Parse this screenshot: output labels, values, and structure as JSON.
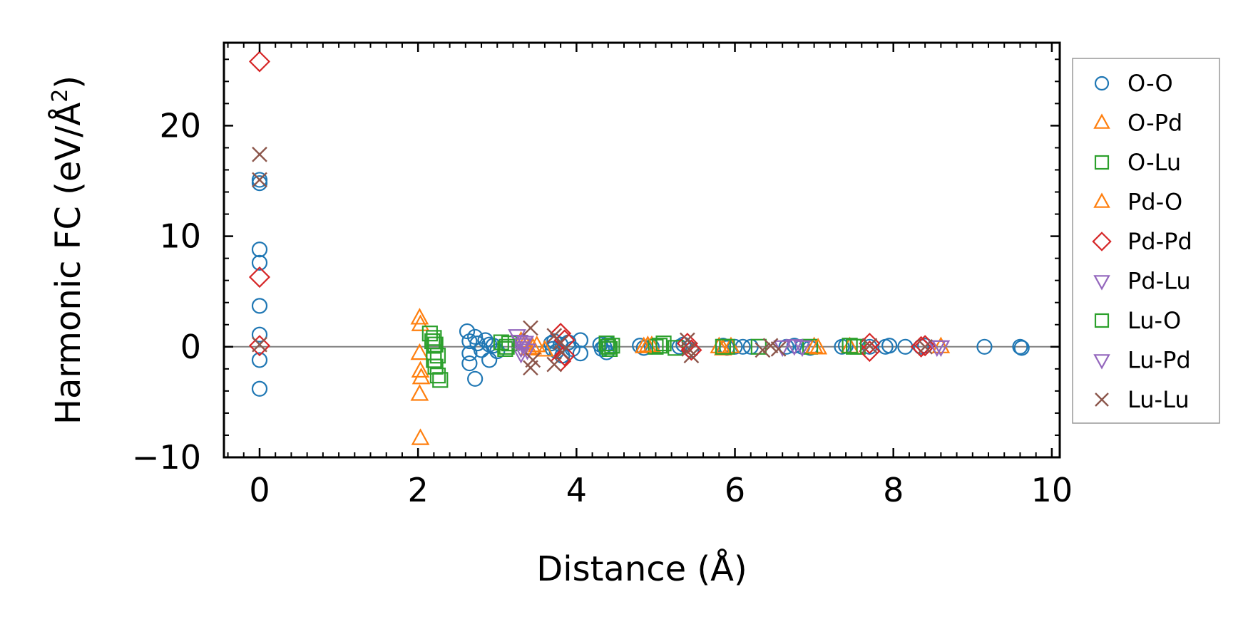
{
  "chart_data": {
    "type": "scatter",
    "xlabel": "Distance (Å)",
    "ylabel_main": "Harmonic FC (eV/Å",
    "ylabel_sup": "2",
    "ylabel_close": ")",
    "xlim": [
      -0.45,
      10.1
    ],
    "ylim": [
      -10,
      27.5
    ],
    "xticks": [
      0,
      2,
      4,
      6,
      8,
      10
    ],
    "xtick_labels": [
      "0",
      "2",
      "4",
      "6",
      "8",
      "10"
    ],
    "yticks": [
      -10,
      0,
      10,
      20
    ],
    "ytick_labels": [
      "−10",
      "0",
      "10",
      "20"
    ],
    "zero_line": true,
    "grid": false,
    "legend_position": "outside-right",
    "series": [
      {
        "name": "O-O",
        "marker": "circle",
        "color": "#1f77b4",
        "points": [
          [
            0,
            15.1
          ],
          [
            0,
            14.8
          ],
          [
            0,
            8.8
          ],
          [
            0,
            7.6
          ],
          [
            0,
            3.7
          ],
          [
            0,
            1.1
          ],
          [
            0,
            -1.2
          ],
          [
            0,
            -3.8
          ],
          [
            2.62,
            1.4
          ],
          [
            2.65,
            0.5
          ],
          [
            2.65,
            -0.6
          ],
          [
            2.65,
            -1.5
          ],
          [
            2.72,
            -2.9
          ],
          [
            2.72,
            0.9
          ],
          [
            2.75,
            0.3
          ],
          [
            2.8,
            -0.3
          ],
          [
            2.85,
            0.6
          ],
          [
            2.9,
            0.2
          ],
          [
            2.9,
            -1.2
          ],
          [
            2.95,
            0.1
          ],
          [
            3.0,
            -0.4
          ],
          [
            3.68,
            0.3
          ],
          [
            3.7,
            -0.2
          ],
          [
            3.72,
            0.5
          ],
          [
            3.75,
            -0.4
          ],
          [
            3.8,
            0.2
          ],
          [
            3.82,
            -0.8
          ],
          [
            3.9,
            0.4
          ],
          [
            3.95,
            -0.2
          ],
          [
            4.05,
            0.6
          ],
          [
            4.05,
            -0.6
          ],
          [
            4.3,
            0.2
          ],
          [
            4.32,
            -0.2
          ],
          [
            4.35,
            0.0
          ],
          [
            4.38,
            -0.5
          ],
          [
            4.4,
            0.3
          ],
          [
            4.8,
            0.1
          ],
          [
            4.85,
            -0.1
          ],
          [
            4.95,
            0.0
          ],
          [
            5.3,
            0.0
          ],
          [
            5.35,
            0.2
          ],
          [
            5.45,
            -0.3
          ],
          [
            5.85,
            0.1
          ],
          [
            5.9,
            -0.1
          ],
          [
            6.0,
            0.0
          ],
          [
            6.1,
            0.0
          ],
          [
            6.2,
            0.0
          ],
          [
            6.65,
            0.0
          ],
          [
            6.75,
            0.1
          ],
          [
            6.85,
            0.0
          ],
          [
            6.95,
            -0.1
          ],
          [
            7.35,
            0.0
          ],
          [
            7.4,
            0.1
          ],
          [
            7.7,
            0.0
          ],
          [
            7.9,
            0.0
          ],
          [
            7.95,
            0.1
          ],
          [
            8.15,
            0.0
          ],
          [
            8.35,
            0.0
          ],
          [
            8.4,
            0.1
          ],
          [
            9.15,
            0.0
          ],
          [
            9.6,
            0.0
          ],
          [
            9.62,
            -0.1
          ]
        ]
      },
      {
        "name": "O-Pd",
        "marker": "triangle-up",
        "color": "#ff7f0e",
        "points": [
          [
            2.02,
            2.6
          ],
          [
            2.03,
            2.0
          ],
          [
            2.02,
            -0.6
          ],
          [
            2.03,
            -2.2
          ],
          [
            2.04,
            -2.8
          ],
          [
            2.02,
            -4.3
          ],
          [
            2.03,
            -8.3
          ],
          [
            3.3,
            0.5
          ],
          [
            3.4,
            -0.2
          ],
          [
            3.5,
            0.1
          ],
          [
            3.6,
            -0.3
          ],
          [
            4.85,
            0.0
          ],
          [
            4.95,
            0.1
          ],
          [
            5.85,
            -0.2
          ],
          [
            5.95,
            0.0
          ],
          [
            7.0,
            0.0
          ],
          [
            7.45,
            0.0
          ],
          [
            8.6,
            0.0
          ]
        ]
      },
      {
        "name": "O-Lu",
        "marker": "square",
        "color": "#2ca02c",
        "points": [
          [
            2.15,
            1.2
          ],
          [
            2.18,
            0.5
          ],
          [
            2.2,
            -0.5
          ],
          [
            2.2,
            -1.2
          ],
          [
            2.22,
            -1.8
          ],
          [
            2.25,
            -2.6
          ],
          [
            2.28,
            -3.0
          ],
          [
            2.22,
            0.2
          ],
          [
            3.05,
            0.4
          ],
          [
            3.1,
            -0.2
          ],
          [
            3.15,
            0.3
          ],
          [
            4.38,
            0.3
          ],
          [
            4.42,
            -0.2
          ],
          [
            4.45,
            0.1
          ],
          [
            5.0,
            0.0
          ],
          [
            5.1,
            0.3
          ],
          [
            5.25,
            -0.1
          ],
          [
            5.9,
            0.0
          ],
          [
            6.3,
            0.0
          ],
          [
            6.95,
            0.0
          ],
          [
            7.45,
            0.1
          ],
          [
            7.55,
            0.0
          ]
        ]
      },
      {
        "name": "Pd-O",
        "marker": "triangle-up",
        "color": "#ff7f0e",
        "points": [
          [
            3.35,
            0.3
          ],
          [
            3.45,
            -0.1
          ],
          [
            4.9,
            0.1
          ],
          [
            5.8,
            0.0
          ],
          [
            7.05,
            -0.1
          ]
        ]
      },
      {
        "name": "Pd-Pd",
        "marker": "diamond",
        "color": "#d62728",
        "points": [
          [
            0,
            25.8
          ],
          [
            0,
            6.3
          ],
          [
            0,
            0.1
          ],
          [
            3.8,
            1.2
          ],
          [
            3.85,
            0.6
          ],
          [
            3.85,
            -0.8
          ],
          [
            3.8,
            -1.3
          ],
          [
            5.4,
            0.3
          ],
          [
            5.45,
            -0.3
          ],
          [
            7.7,
            0.3
          ],
          [
            7.7,
            -0.4
          ],
          [
            8.35,
            0.0
          ],
          [
            8.4,
            0.1
          ]
        ]
      },
      {
        "name": "Pd-Lu",
        "marker": "triangle-down",
        "color": "#9467bd",
        "points": [
          [
            3.25,
            1.0
          ],
          [
            3.28,
            0.5
          ],
          [
            3.3,
            -0.1
          ],
          [
            3.3,
            -0.6
          ],
          [
            3.32,
            0.2
          ],
          [
            6.75,
            0.1
          ],
          [
            6.85,
            0.0
          ],
          [
            8.6,
            0.0
          ]
        ]
      },
      {
        "name": "Lu-O",
        "marker": "square",
        "color": "#2ca02c",
        "points": [
          [
            2.2,
            0.8
          ],
          [
            2.25,
            -0.8
          ],
          [
            3.12,
            0.0
          ],
          [
            4.4,
            0.0
          ],
          [
            5.05,
            0.1
          ],
          [
            5.85,
            0.0
          ],
          [
            7.5,
            0.0
          ]
        ]
      },
      {
        "name": "Lu-Pd",
        "marker": "triangle-down",
        "color": "#9467bd",
        "points": [
          [
            3.35,
            0.4
          ],
          [
            3.38,
            -0.3
          ],
          [
            6.6,
            0.0
          ],
          [
            8.55,
            0.0
          ]
        ]
      },
      {
        "name": "Lu-Lu",
        "marker": "x",
        "color": "#8c564b",
        "points": [
          [
            0,
            17.4
          ],
          [
            0,
            15.1
          ],
          [
            0,
            0.2
          ],
          [
            3.42,
            1.7
          ],
          [
            3.42,
            -1.9
          ],
          [
            3.45,
            -1.2
          ],
          [
            3.72,
            1.0
          ],
          [
            3.72,
            -1.6
          ],
          [
            3.8,
            0.4
          ],
          [
            3.82,
            -0.5
          ],
          [
            5.4,
            0.6
          ],
          [
            5.42,
            -0.2
          ],
          [
            5.45,
            -0.8
          ],
          [
            6.35,
            -0.3
          ],
          [
            6.45,
            0.1
          ],
          [
            6.55,
            -0.2
          ],
          [
            7.7,
            0.1
          ],
          [
            8.4,
            0.0
          ]
        ]
      }
    ]
  }
}
